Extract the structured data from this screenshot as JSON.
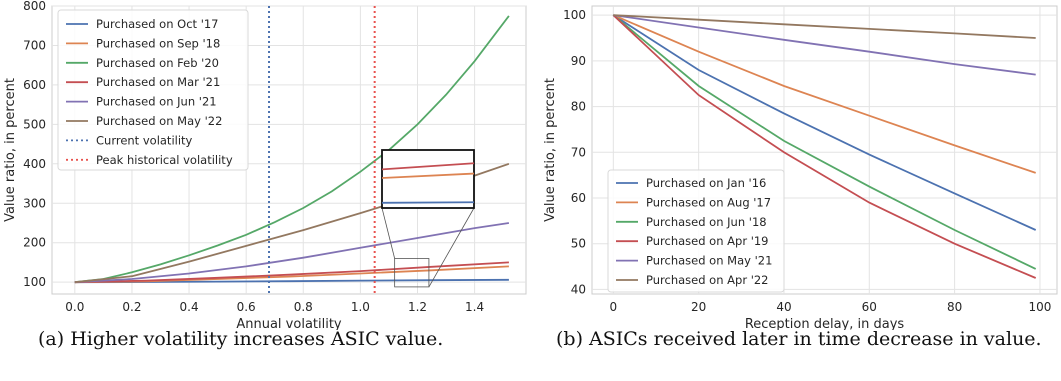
{
  "chart_data": [
    {
      "type": "line",
      "xlabel": "Annual volatility",
      "ylabel": "Value ratio, in percent",
      "xlim": [
        -0.08,
        1.58
      ],
      "ylim": [
        70,
        800
      ],
      "xticks": [
        0.0,
        0.2,
        0.4,
        0.6,
        0.8,
        1.0,
        1.2,
        1.4
      ],
      "xtick_labels": [
        "0.0",
        "0.2",
        "0.4",
        "0.6",
        "0.8",
        "1.0",
        "1.2",
        "1.4"
      ],
      "yticks": [
        100,
        200,
        300,
        400,
        500,
        600,
        700,
        800
      ],
      "ytick_labels": [
        "100",
        "200",
        "300",
        "400",
        "500",
        "600",
        "700",
        "800"
      ],
      "grid": true,
      "legend_position": "top-left",
      "series": [
        {
          "name": "Purchased on Oct '17",
          "color": "#4c72b0",
          "x": [
            0,
            0.25,
            0.5,
            0.75,
            1.0,
            1.25,
            1.52
          ],
          "y": [
            100,
            100.5,
            101.5,
            102.5,
            104,
            105,
            106
          ]
        },
        {
          "name": "Purchased on Sep '18",
          "color": "#dd8452",
          "x": [
            0,
            0.25,
            0.5,
            0.75,
            1.0,
            1.25,
            1.52
          ],
          "y": [
            100,
            102,
            108,
            114,
            122,
            130,
            140
          ]
        },
        {
          "name": "Purchased on Feb '20",
          "color": "#55a868",
          "x": [
            0,
            0.1,
            0.2,
            0.3,
            0.4,
            0.5,
            0.6,
            0.7,
            0.8,
            0.9,
            1.0,
            1.1,
            1.2,
            1.3,
            1.4,
            1.52
          ],
          "y": [
            100,
            108,
            125,
            145,
            168,
            193,
            220,
            252,
            288,
            330,
            380,
            435,
            500,
            575,
            660,
            775
          ]
        },
        {
          "name": "Purchased on Mar '21",
          "color": "#c44e52",
          "x": [
            0,
            0.25,
            0.5,
            0.75,
            1.0,
            1.25,
            1.52
          ],
          "y": [
            100,
            104,
            111,
            119,
            128,
            139,
            150
          ]
        },
        {
          "name": "Purchased on Jun '21",
          "color": "#8172b3",
          "x": [
            0,
            0.2,
            0.4,
            0.6,
            0.8,
            1.0,
            1.2,
            1.4,
            1.52
          ],
          "y": [
            100,
            108,
            122,
            140,
            162,
            187,
            212,
            237,
            250
          ]
        },
        {
          "name": "Purchased on May '22",
          "color": "#937860",
          "x": [
            0,
            0.2,
            0.4,
            0.6,
            0.8,
            1.0,
            1.2,
            1.4,
            1.52
          ],
          "y": [
            100,
            115,
            152,
            192,
            232,
            275,
            320,
            370,
            400
          ]
        }
      ],
      "vlines": [
        {
          "name": "Current volatility",
          "color": "#4c72b0",
          "x": 0.68
        },
        {
          "name": "Peak historical volatility",
          "color": "#e8534f",
          "x": 1.05
        }
      ],
      "inset": {
        "xlim": [
          1.12,
          1.24
        ],
        "ylim": [
          100,
          150
        ],
        "source_rect": {
          "x": [
            1.12,
            1.24
          ],
          "y": [
            88,
            160
          ]
        }
      }
    },
    {
      "type": "line",
      "xlabel": "Reception delay, in days",
      "ylabel": "Value ratio, in percent",
      "xlim": [
        -5,
        104
      ],
      "ylim": [
        39,
        102
      ],
      "xticks": [
        0,
        20,
        40,
        60,
        80,
        100
      ],
      "xtick_labels": [
        "0",
        "20",
        "40",
        "60",
        "80",
        "100"
      ],
      "yticks": [
        40,
        50,
        60,
        70,
        80,
        90,
        100
      ],
      "ytick_labels": [
        "40",
        "50",
        "60",
        "70",
        "80",
        "90",
        "100"
      ],
      "grid": true,
      "legend_position": "bottom-left",
      "series": [
        {
          "name": "Purchased on Jan '16",
          "color": "#4c72b0",
          "x": [
            0,
            20,
            40,
            60,
            80,
            99
          ],
          "y": [
            100,
            88,
            78.5,
            69.5,
            61,
            53
          ]
        },
        {
          "name": "Purchased on Aug '17",
          "color": "#dd8452",
          "x": [
            0,
            20,
            40,
            60,
            80,
            99
          ],
          "y": [
            100,
            92,
            84.5,
            78,
            71.5,
            65.5
          ]
        },
        {
          "name": "Purchased on Jun '18",
          "color": "#55a868",
          "x": [
            0,
            20,
            40,
            60,
            80,
            99
          ],
          "y": [
            100,
            84.5,
            72.5,
            62.5,
            53,
            44.5
          ]
        },
        {
          "name": "Purchased on Apr '19",
          "color": "#c44e52",
          "x": [
            0,
            20,
            40,
            60,
            80,
            99
          ],
          "y": [
            100,
            82.5,
            70,
            59,
            50,
            42.5
          ]
        },
        {
          "name": "Purchased on May '21",
          "color": "#8172b3",
          "x": [
            0,
            20,
            40,
            60,
            80,
            99
          ],
          "y": [
            100,
            97.3,
            94.6,
            92,
            89.3,
            87
          ]
        },
        {
          "name": "Purchased on Apr '22",
          "color": "#937860",
          "x": [
            0,
            20,
            40,
            60,
            80,
            99
          ],
          "y": [
            100,
            99,
            98,
            97,
            96,
            95
          ]
        }
      ]
    }
  ],
  "captions": {
    "a": "(a) Higher volatility increases ASIC value.",
    "b": "(b) ASICs received later in time decrease in value."
  }
}
